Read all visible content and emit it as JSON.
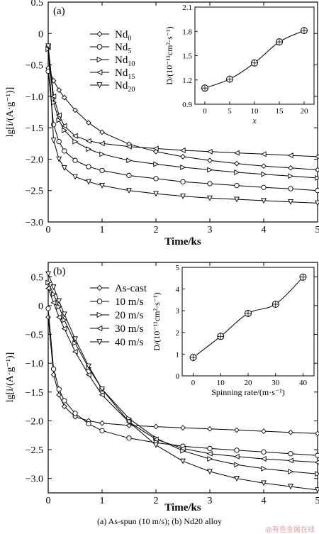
{
  "caption": "(a) As-spun (10 m/s); (b) Nd20 alloy",
  "watermark": "@有色金属在线",
  "chart_data": [
    {
      "type": "line",
      "panel_label": "(a)",
      "xlabel": "Time/ks",
      "ylabel": "lg[i/(A·g⁻¹)]",
      "xlim": [
        0,
        5
      ],
      "ylim": [
        -3.0,
        0.5
      ],
      "x_ticks": [
        0,
        1,
        2,
        3,
        4,
        5
      ],
      "y_ticks": [
        -3.0,
        -2.5,
        -2.0,
        -1.5,
        -1.0,
        -0.5,
        0,
        0.5
      ],
      "x": [
        0.1,
        0.2,
        0.3,
        0.5,
        0.75,
        1.0,
        1.5,
        2.0,
        2.5,
        3.0,
        3.5,
        4.0,
        4.5,
        5.0
      ],
      "series": [
        {
          "name": "Nd0",
          "marker": "diamond",
          "start": -0.55,
          "values": [
            -0.75,
            -0.9,
            -1.02,
            -1.22,
            -1.42,
            -1.57,
            -1.76,
            -1.88,
            -1.96,
            -2.02,
            -2.07,
            -2.11,
            -2.14,
            -2.17
          ]
        },
        {
          "name": "Nd5",
          "marker": "circle",
          "start": -0.6,
          "values": [
            -1.45,
            -1.72,
            -1.87,
            -2.02,
            -2.12,
            -2.18,
            -2.26,
            -2.31,
            -2.36,
            -2.39,
            -2.42,
            -2.45,
            -2.47,
            -2.5
          ]
        },
        {
          "name": "Nd10",
          "marker": "triangle-right",
          "start": -0.25,
          "values": [
            -1.1,
            -1.38,
            -1.54,
            -1.72,
            -1.84,
            -1.92,
            -2.02,
            -2.08,
            -2.13,
            -2.17,
            -2.21,
            -2.24,
            -2.27,
            -2.3
          ]
        },
        {
          "name": "Nd15",
          "marker": "triangle-left",
          "start": -0.2,
          "values": [
            -1.0,
            -1.3,
            -1.47,
            -1.63,
            -1.71,
            -1.75,
            -1.8,
            -1.83,
            -1.86,
            -1.88,
            -1.9,
            -1.92,
            -1.94,
            -1.96
          ]
        },
        {
          "name": "Nd20",
          "marker": "triangle-down",
          "start": -0.2,
          "values": [
            -1.7,
            -2.0,
            -2.14,
            -2.28,
            -2.36,
            -2.42,
            -2.5,
            -2.55,
            -2.59,
            -2.62,
            -2.64,
            -2.66,
            -2.68,
            -2.7
          ]
        }
      ],
      "legend": {
        "placement": "left",
        "entries": [
          [
            "Nd",
            "0"
          ],
          [
            "Nd",
            "5"
          ],
          [
            "Nd",
            "10"
          ],
          [
            "Nd",
            "15"
          ],
          [
            "Nd",
            "20"
          ]
        ]
      },
      "inset": {
        "type": "line",
        "xlabel": "x",
        "ylabel": "D/(10⁻¹¹cm²·s⁻¹)",
        "xlim": [
          -2,
          22
        ],
        "ylim": [
          0.9,
          2.1
        ],
        "x_ticks": [
          0,
          5,
          10,
          15,
          20
        ],
        "y_ticks": [
          0.9,
          1.2,
          1.5,
          1.8,
          2.1
        ],
        "x": [
          0,
          5,
          10,
          15,
          20
        ],
        "values": [
          1.1,
          1.21,
          1.41,
          1.67,
          1.81
        ]
      }
    },
    {
      "type": "line",
      "panel_label": "(b)",
      "xlabel": "Time/ks",
      "ylabel": "lg[i/(A·g⁻¹)]",
      "xlim": [
        0,
        5
      ],
      "ylim": [
        -3.25,
        0.75
      ],
      "x_ticks": [
        0,
        1,
        2,
        3,
        4,
        5
      ],
      "y_ticks": [
        -3.0,
        -2.5,
        -2.0,
        -1.5,
        -1.0,
        -0.5,
        0,
        0.5
      ],
      "x": [
        0.1,
        0.2,
        0.3,
        0.5,
        0.75,
        1.0,
        1.5,
        2.0,
        2.5,
        3.0,
        3.5,
        4.0,
        4.5,
        5.0
      ],
      "series": [
        {
          "name": "As-cast",
          "marker": "diamond",
          "start": -0.2,
          "values": [
            -1.2,
            -1.55,
            -1.75,
            -1.93,
            -2.0,
            -2.04,
            -2.08,
            -2.1,
            -2.12,
            -2.14,
            -2.16,
            -2.18,
            -2.2,
            -2.22
          ]
        },
        {
          "name": "10 m/s",
          "marker": "circle",
          "start": -0.05,
          "values": [
            -1.1,
            -1.45,
            -1.65,
            -1.87,
            -2.05,
            -2.17,
            -2.3,
            -2.38,
            -2.44,
            -2.48,
            -2.51,
            -2.54,
            -2.57,
            -2.6
          ]
        },
        {
          "name": "20 m/s",
          "marker": "triangle-right",
          "start": 0.4,
          "values": [
            0.2,
            -0.02,
            -0.25,
            -0.65,
            -1.08,
            -1.45,
            -1.96,
            -2.3,
            -2.52,
            -2.66,
            -2.76,
            -2.83,
            -2.88,
            -2.92
          ]
        },
        {
          "name": "30 m/s",
          "marker": "triangle-left",
          "start": 0.3,
          "values": [
            0.05,
            -0.2,
            -0.4,
            -0.8,
            -1.2,
            -1.55,
            -2.02,
            -2.32,
            -2.48,
            -2.57,
            -2.62,
            -2.66,
            -2.69,
            -2.72
          ]
        },
        {
          "name": "40 m/s",
          "marker": "triangle-down",
          "start": 0.55,
          "values": [
            0.32,
            0.08,
            -0.15,
            -0.58,
            -1.05,
            -1.45,
            -2.02,
            -2.42,
            -2.7,
            -2.88,
            -3.0,
            -3.08,
            -3.14,
            -3.2
          ]
        }
      ],
      "legend": {
        "placement": "top-center",
        "entries": [
          [
            "As-cast",
            ""
          ],
          [
            "10 m/s",
            ""
          ],
          [
            "20 m/s",
            ""
          ],
          [
            "30 m/s",
            ""
          ],
          [
            "40 m/s",
            ""
          ]
        ]
      },
      "inset": {
        "type": "line",
        "xlabel": "Spinning rate/(m·s⁻¹)",
        "ylabel": "D/(10⁻¹¹cm²·s⁻¹)",
        "xlim": [
          -4,
          44
        ],
        "ylim": [
          0,
          5
        ],
        "x_ticks": [
          0,
          10,
          20,
          30,
          40
        ],
        "y_ticks": [
          0,
          1,
          2,
          3,
          4,
          5
        ],
        "x": [
          0,
          10,
          20,
          30,
          40
        ],
        "values": [
          0.85,
          1.82,
          2.88,
          3.3,
          4.55
        ]
      }
    }
  ]
}
